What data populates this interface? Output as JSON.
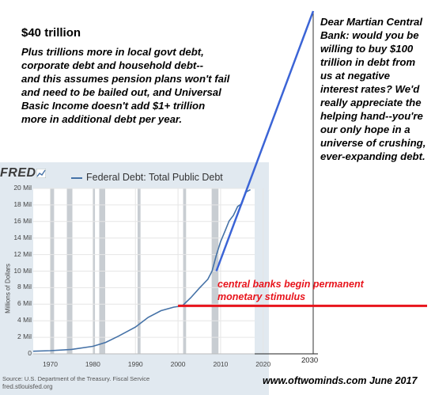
{
  "headline": "$40 trillion",
  "note_lines": [
    "Plus trillions more in local govt debt,",
    "corporate debt and household debt--",
    "and this assumes pension plans won't fail",
    "and need to be bailed out, and Universal",
    "Basic Income doesn't add $1+ trillion",
    "more in additional debt per year."
  ],
  "letter_lines": [
    "Dear Martian Central",
    "Bank: would you be",
    "willing to buy $100",
    "trillion in debt from",
    "us at negative",
    "interest rates? We'd",
    "really appreciate the",
    "helping hand--you're",
    "our only hope in a",
    "universe of crushing,",
    "ever-expanding debt."
  ],
  "annotation_lines": [
    "central banks begin permanent",
    "monetary stimulus"
  ],
  "website": "www.oftwominds.com  June 2017",
  "fred": {
    "logo": "FRED",
    "source": "Source: U.S. Department of the Treasury. Fiscal Service",
    "url": "fred.stlouisfed.org"
  },
  "colors": {
    "series": "#4572a7",
    "projection": "#3b64d6",
    "stimulus_line": "#e8141c",
    "panel_bg": "#e1e9f0",
    "recession_shade": "#c8cdd2"
  },
  "chart_data": {
    "type": "line",
    "title": "",
    "xlabel": "",
    "ylabel": "Millions of Dollars",
    "legend": [
      "Federal Debt: Total Public Debt"
    ],
    "x_tick_labels": [
      "1970",
      "1980",
      "1990",
      "2000",
      "2010",
      "2020"
    ],
    "y_tick_labels": [
      "0",
      "2 Mil",
      "4 Mil",
      "6 Mil",
      "8 Mil",
      "10 Mil",
      "12 Mil",
      "14 Mil",
      "16 Mil",
      "18 Mil",
      "20 Mil"
    ],
    "xlim": [
      1966,
      2018
    ],
    "ylim": [
      0,
      20000000
    ],
    "grid": true,
    "series": [
      {
        "name": "Federal Debt: Total Public Debt",
        "x": [
          1966,
          1970,
          1975,
          1980,
          1983,
          1986,
          1990,
          1993,
          1996,
          1999,
          2001,
          2003,
          2005,
          2007,
          2008,
          2009,
          2010,
          2011,
          2012,
          2013,
          2014,
          2015,
          2016,
          2017
        ],
        "y": [
          320000,
          380000,
          540000,
          910000,
          1380000,
          2130000,
          3230000,
          4410000,
          5220000,
          5650000,
          5800000,
          6780000,
          7930000,
          9010000,
          10030000,
          11910000,
          13560000,
          14790000,
          16070000,
          16740000,
          17820000,
          18150000,
          19570000,
          19850000
        ]
      }
    ],
    "recessions": [
      [
        1969.9,
        1970.9
      ],
      [
        1973.9,
        1975.2
      ],
      [
        1980.0,
        1980.5
      ],
      [
        1981.5,
        1982.9
      ],
      [
        1990.5,
        1991.2
      ],
      [
        2001.2,
        2001.9
      ],
      [
        2007.9,
        2009.5
      ]
    ],
    "extended_axis_label": "2030",
    "projection": {
      "from_x": 2009,
      "from_y": 10000000,
      "to_x": 2030,
      "to_y": 40000000,
      "label": "$40 trillion"
    },
    "stimulus_level": {
      "x_start": 2000,
      "y": 5800000
    }
  }
}
